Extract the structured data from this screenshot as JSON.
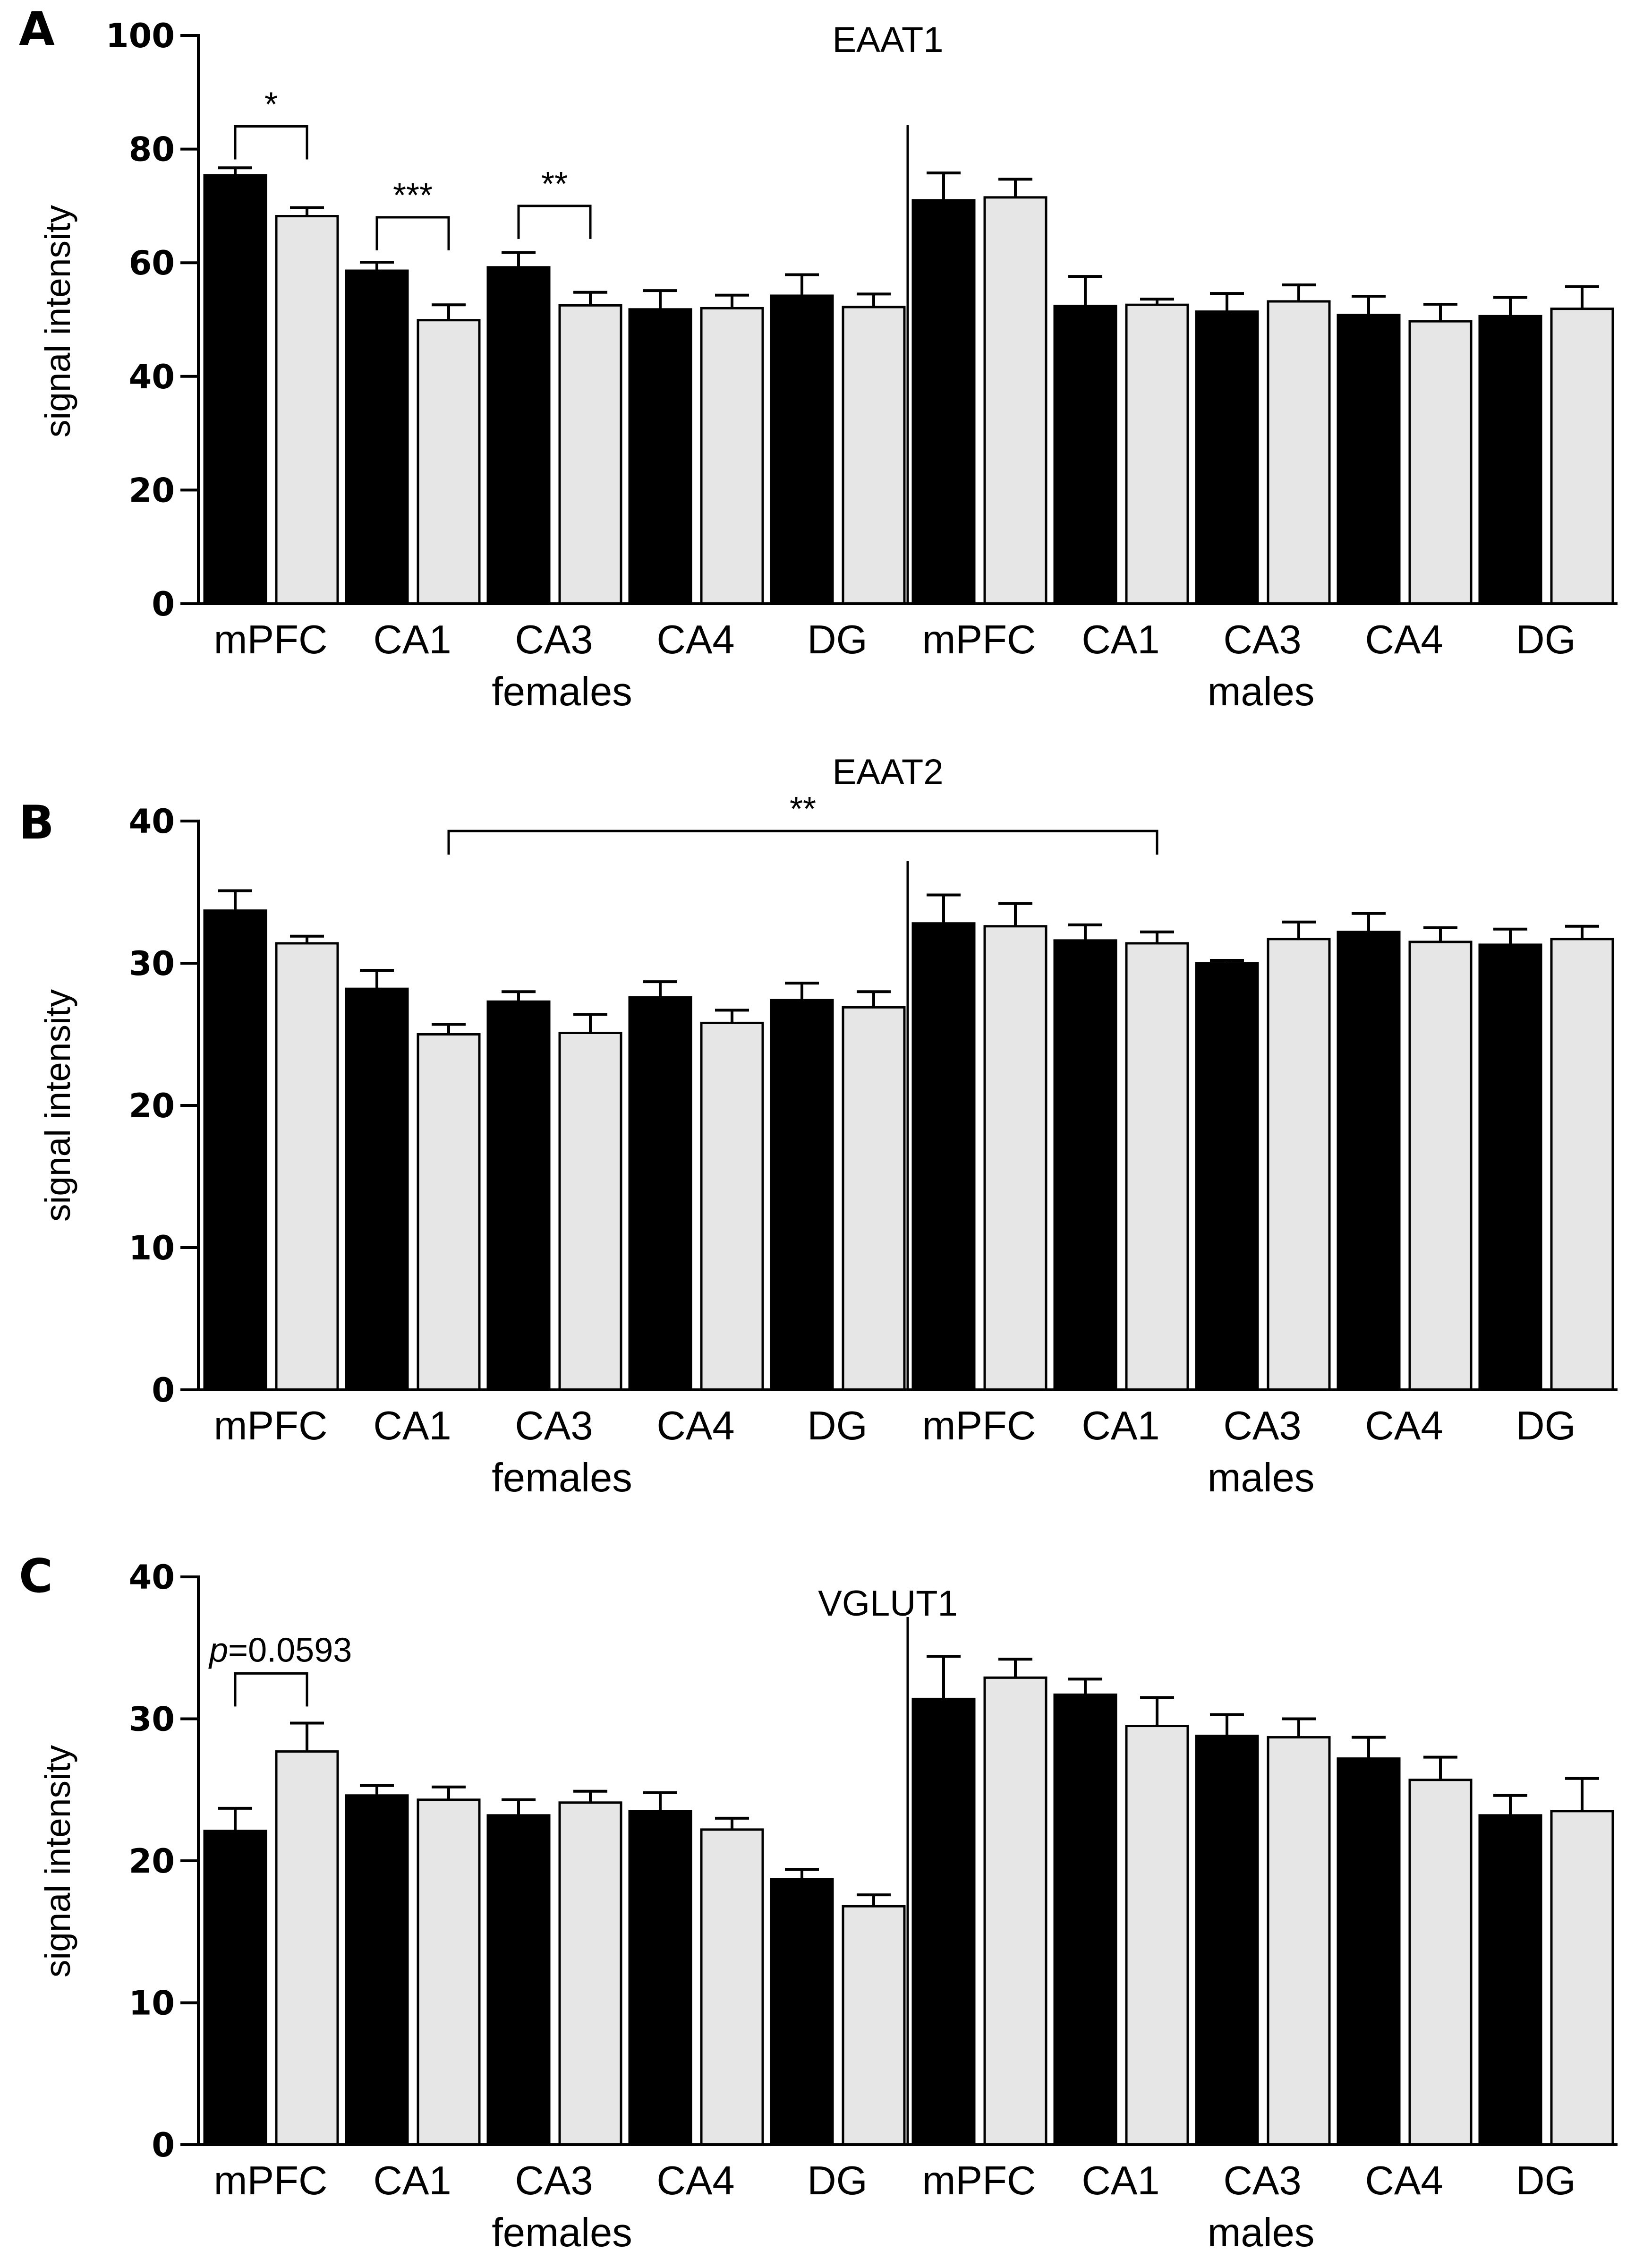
{
  "colors": {
    "female_fill": "#000000",
    "male_fill": "#e6e6e6",
    "axis": "#000000"
  },
  "chart_data": [
    {
      "type": "bar",
      "panel": "A",
      "title": "EAAT1",
      "ylabel": "signal intensity",
      "ylim": [
        0,
        100
      ],
      "yticks": [
        "0",
        "20",
        "40",
        "60",
        "80",
        "100"
      ],
      "ytick_values": [
        0,
        20,
        40,
        60,
        80,
        100
      ],
      "categories": [
        "mPFC",
        "CA1",
        "CA3",
        "CA4",
        "DG",
        "mPFC",
        "CA1",
        "CA3",
        "CA4",
        "DG"
      ],
      "groups": [
        "females",
        "males"
      ],
      "series": [
        {
          "name": "black",
          "values": [
            75.4,
            58.6,
            59.2,
            51.8,
            54.2,
            71.0,
            52.4,
            51.4,
            50.8,
            50.6
          ],
          "errors": [
            1.3,
            1.5,
            2.6,
            3.3,
            3.7,
            4.8,
            5.2,
            3.2,
            3.3,
            3.3
          ]
        },
        {
          "name": "grey",
          "values": [
            68.2,
            49.9,
            52.5,
            52.0,
            52.2,
            71.5,
            52.6,
            53.2,
            49.7,
            51.9
          ],
          "errors": [
            1.5,
            2.7,
            2.3,
            2.3,
            2.3,
            3.2,
            1.0,
            2.9,
            3.0,
            3.9
          ]
        }
      ],
      "significance": [
        {
          "from": 0,
          "to": 0,
          "label": "*",
          "y": 84
        },
        {
          "from": 1,
          "to": 1,
          "label": "***",
          "y": 68
        },
        {
          "from": 2,
          "to": 2,
          "label": "**",
          "y": 70
        }
      ]
    },
    {
      "type": "bar",
      "panel": "B",
      "title": "EAAT2",
      "ylabel": "signal intensity",
      "ylim": [
        0,
        40
      ],
      "yticks": [
        "0",
        "10",
        "20",
        "30",
        "40"
      ],
      "ytick_values": [
        0,
        10,
        20,
        30,
        40
      ],
      "categories": [
        "mPFC",
        "CA1",
        "CA3",
        "CA4",
        "DG",
        "mPFC",
        "CA1",
        "CA3",
        "CA4",
        "DG"
      ],
      "groups": [
        "females",
        "males"
      ],
      "series": [
        {
          "name": "black",
          "values": [
            33.7,
            28.2,
            27.3,
            27.6,
            27.4,
            32.8,
            31.6,
            30.0,
            32.2,
            31.3
          ],
          "errors": [
            1.4,
            1.3,
            0.7,
            1.1,
            1.2,
            2.0,
            1.1,
            0.2,
            1.3,
            1.1
          ]
        },
        {
          "name": "grey",
          "values": [
            31.4,
            25.0,
            25.1,
            25.8,
            26.9,
            32.6,
            31.4,
            31.7,
            31.5,
            31.7
          ],
          "errors": [
            0.5,
            0.7,
            1.3,
            0.9,
            1.1,
            1.6,
            0.8,
            1.2,
            1.0,
            0.9
          ]
        }
      ],
      "significance": [
        {
          "from": 1,
          "to": 6,
          "label": "**",
          "y": 39.3
        }
      ]
    },
    {
      "type": "bar",
      "panel": "C",
      "title": "VGLUT1",
      "ylabel": "signal intensity",
      "ylim": [
        0,
        40
      ],
      "yticks": [
        "0",
        "10",
        "20",
        "30",
        "40"
      ],
      "ytick_values": [
        0,
        10,
        20,
        30,
        40
      ],
      "categories": [
        "mPFC",
        "CA1",
        "CA3",
        "CA4",
        "DG",
        "mPFC",
        "CA1",
        "CA3",
        "CA4",
        "DG"
      ],
      "groups": [
        "females",
        "males"
      ],
      "series": [
        {
          "name": "black",
          "values": [
            22.1,
            24.6,
            23.2,
            23.5,
            18.7,
            31.4,
            31.7,
            28.8,
            27.2,
            23.2
          ],
          "errors": [
            1.6,
            0.7,
            1.1,
            1.3,
            0.7,
            3.0,
            1.1,
            1.5,
            1.5,
            1.4
          ]
        },
        {
          "name": "grey",
          "values": [
            27.7,
            24.3,
            24.1,
            22.2,
            16.8,
            32.9,
            29.5,
            28.7,
            25.7,
            23.5
          ],
          "errors": [
            2.0,
            0.9,
            0.8,
            0.8,
            0.8,
            1.3,
            2.0,
            1.3,
            1.6,
            2.3
          ]
        }
      ],
      "significance": [
        {
          "from": 0,
          "to": 0,
          "label": "p=0.0593",
          "label_prefix": "p",
          "label_suffix": "=0.0593",
          "y": 33.2
        }
      ]
    }
  ]
}
